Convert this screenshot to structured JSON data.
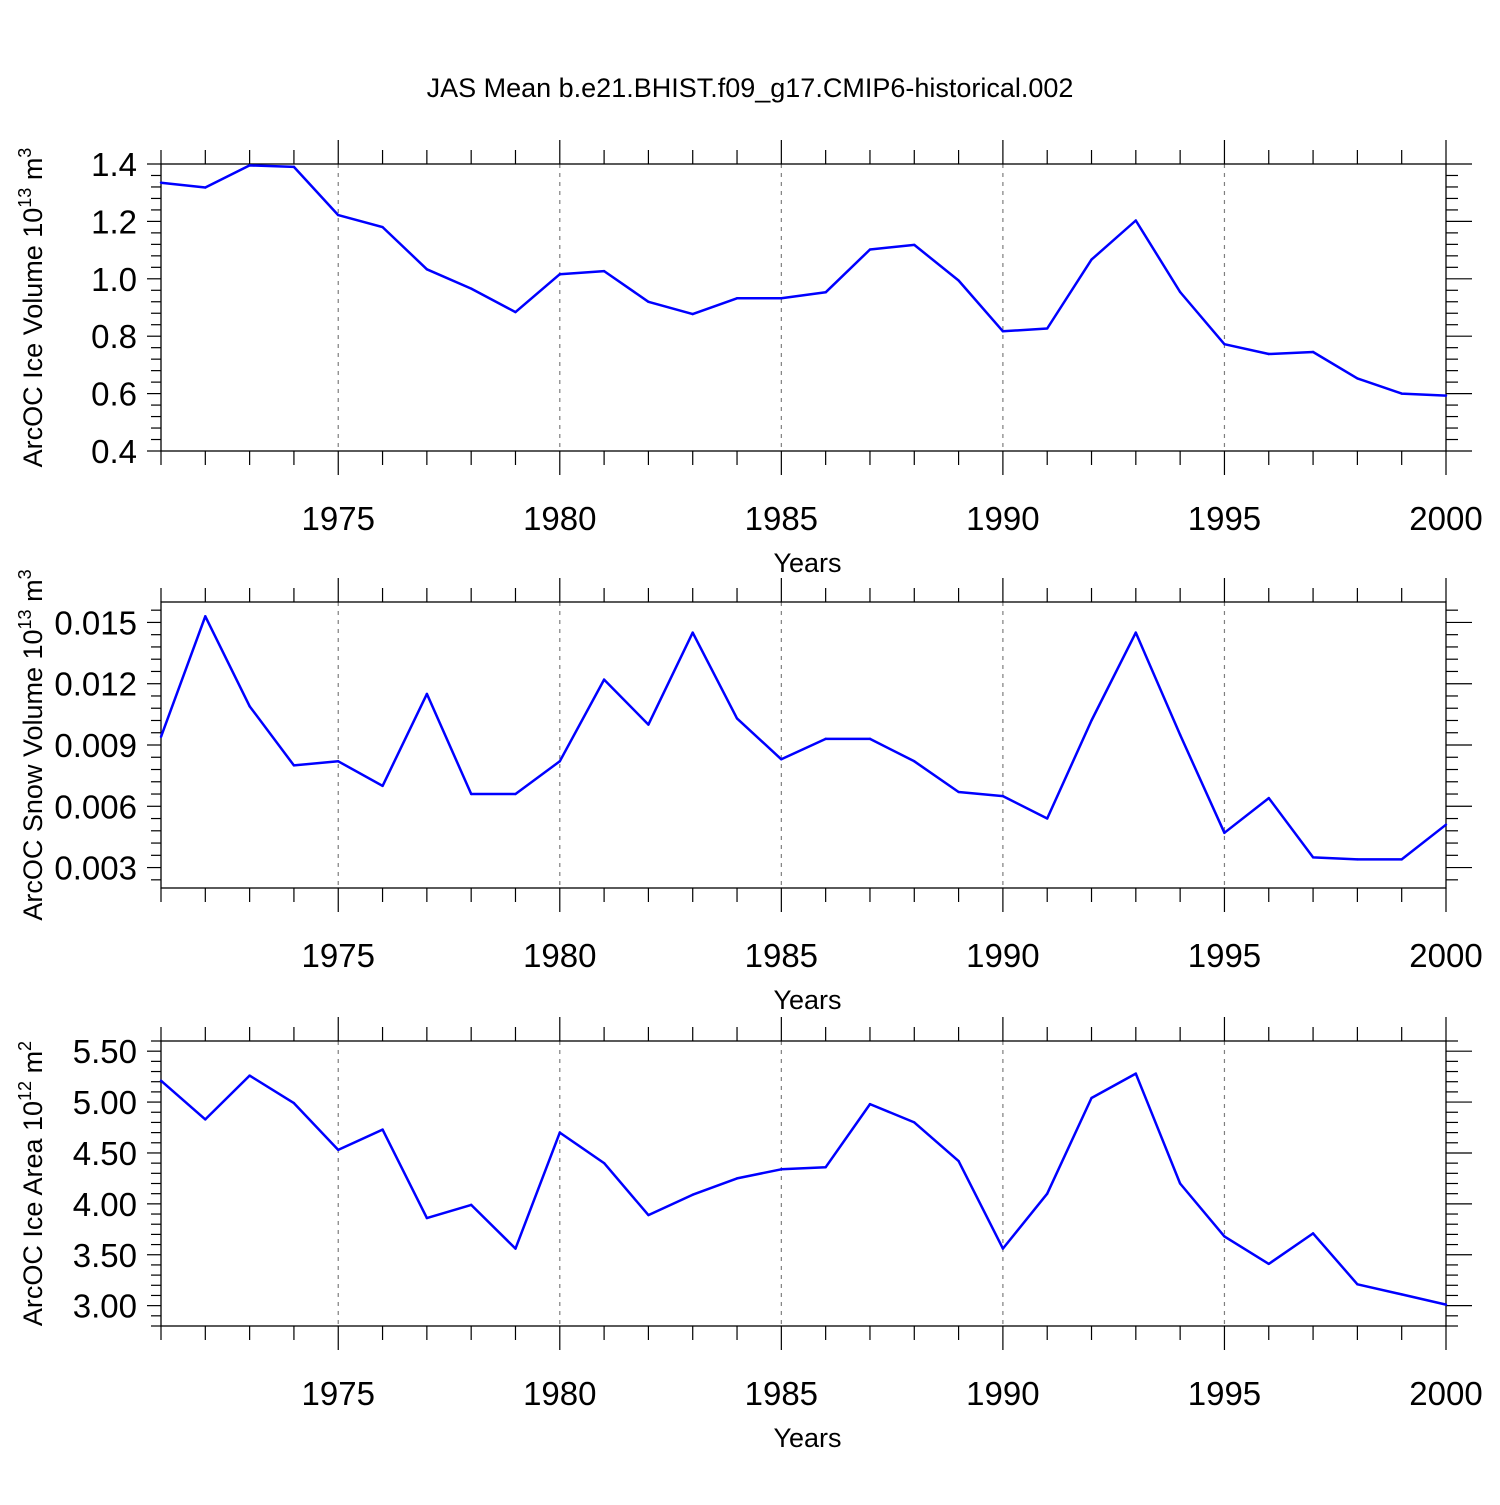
{
  "figure": {
    "title": "JAS Mean b.e21.BHIST.f09_g17.CMIP6-historical.002"
  },
  "style": {
    "line_color": "#0000ff",
    "axis_color": "#000000",
    "grid_color": "#7f7f7f"
  },
  "chart_data": [
    {
      "type": "line",
      "ylabel": "ArcOC Ice Volume 10",
      "ylabel_sup": "13",
      "ylabel_unit": " m",
      "ylabel_unit_sup": "3",
      "xlabel": "Years",
      "xlim": [
        1971,
        2000
      ],
      "ylim": [
        0.4,
        1.4
      ],
      "yticks": [
        0.4,
        0.6,
        0.8,
        1.0,
        1.2,
        1.4
      ],
      "ytick_labels": [
        "0.4",
        "0.6",
        "0.8",
        "1.0",
        "1.2",
        "1.4"
      ],
      "xticks": [
        1975,
        1980,
        1985,
        1990,
        1995,
        2000
      ],
      "xtick_labels": [
        "1975",
        "1980",
        "1985",
        "1990",
        "1995",
        "2000"
      ],
      "x_grid": "dashed vertical at major x ticks",
      "x": [
        1971,
        1972,
        1973,
        1974,
        1975,
        1976,
        1977,
        1978,
        1979,
        1980,
        1981,
        1982,
        1983,
        1984,
        1985,
        1986,
        1987,
        1988,
        1989,
        1990,
        1991,
        1992,
        1993,
        1994,
        1995,
        1996,
        1997,
        1998,
        1999,
        2000
      ],
      "values": [
        1.335,
        1.318,
        1.395,
        1.39,
        1.222,
        1.18,
        1.033,
        0.966,
        0.884,
        1.016,
        1.027,
        0.92,
        0.877,
        0.932,
        0.932,
        0.953,
        1.102,
        1.118,
        0.994,
        0.817,
        0.827,
        1.067,
        1.203,
        0.954,
        0.772,
        0.738,
        0.745,
        0.653,
        0.6,
        0.593
      ]
    },
    {
      "type": "line",
      "ylabel": "ArcOC Snow Volume 10",
      "ylabel_sup": "13",
      "ylabel_unit": " m",
      "ylabel_unit_sup": "3",
      "xlabel": "Years",
      "xlim": [
        1971,
        2000
      ],
      "ylim": [
        0.002,
        0.016
      ],
      "yticks": [
        0.003,
        0.006,
        0.009,
        0.012,
        0.015
      ],
      "ytick_labels": [
        "0.003",
        "0.006",
        "0.009",
        "0.012",
        "0.015"
      ],
      "xticks": [
        1975,
        1980,
        1985,
        1990,
        1995,
        2000
      ],
      "xtick_labels": [
        "1975",
        "1980",
        "1985",
        "1990",
        "1995",
        "2000"
      ],
      "x_grid": "dashed vertical at major x ticks",
      "x": [
        1971,
        1972,
        1973,
        1974,
        1975,
        1976,
        1977,
        1978,
        1979,
        1980,
        1981,
        1982,
        1983,
        1984,
        1985,
        1986,
        1987,
        1988,
        1989,
        1990,
        1991,
        1992,
        1993,
        1994,
        1995,
        1996,
        1997,
        1998,
        1999,
        2000
      ],
      "values": [
        0.0094,
        0.0153,
        0.0109,
        0.008,
        0.0082,
        0.007,
        0.0115,
        0.0066,
        0.0066,
        0.0082,
        0.0122,
        0.01,
        0.0145,
        0.0103,
        0.0083,
        0.0093,
        0.0093,
        0.0082,
        0.0067,
        0.0065,
        0.0054,
        0.0102,
        0.0145,
        0.0095,
        0.0047,
        0.0064,
        0.0035,
        0.0034,
        0.0034,
        0.0051
      ]
    },
    {
      "type": "line",
      "ylabel": "ArcOC Ice Area 10",
      "ylabel_sup": "12",
      "ylabel_unit": " m",
      "ylabel_unit_sup": "2",
      "xlabel": "Years",
      "xlim": [
        1971,
        2000
      ],
      "ylim": [
        2.8,
        5.6
      ],
      "yticks": [
        3.0,
        3.5,
        4.0,
        4.5,
        5.0,
        5.5
      ],
      "ytick_labels": [
        "3.00",
        "3.50",
        "4.00",
        "4.50",
        "5.00",
        "5.50"
      ],
      "xticks": [
        1975,
        1980,
        1985,
        1990,
        1995,
        2000
      ],
      "xtick_labels": [
        "1975",
        "1980",
        "1985",
        "1990",
        "1995",
        "2000"
      ],
      "x_grid": "dashed vertical at major x ticks",
      "x": [
        1971,
        1972,
        1973,
        1974,
        1975,
        1976,
        1977,
        1978,
        1979,
        1980,
        1981,
        1982,
        1983,
        1984,
        1985,
        1986,
        1987,
        1988,
        1989,
        1990,
        1991,
        1992,
        1993,
        1994,
        1995,
        1996,
        1997,
        1998,
        1999,
        2000
      ],
      "values": [
        5.21,
        4.83,
        5.26,
        4.99,
        4.53,
        4.73,
        3.86,
        3.99,
        3.56,
        4.7,
        4.4,
        3.89,
        4.09,
        4.25,
        4.34,
        4.36,
        4.98,
        4.8,
        4.42,
        3.56,
        4.1,
        5.04,
        5.28,
        4.2,
        3.68,
        3.41,
        3.71,
        3.21,
        3.11,
        3.01
      ]
    }
  ]
}
